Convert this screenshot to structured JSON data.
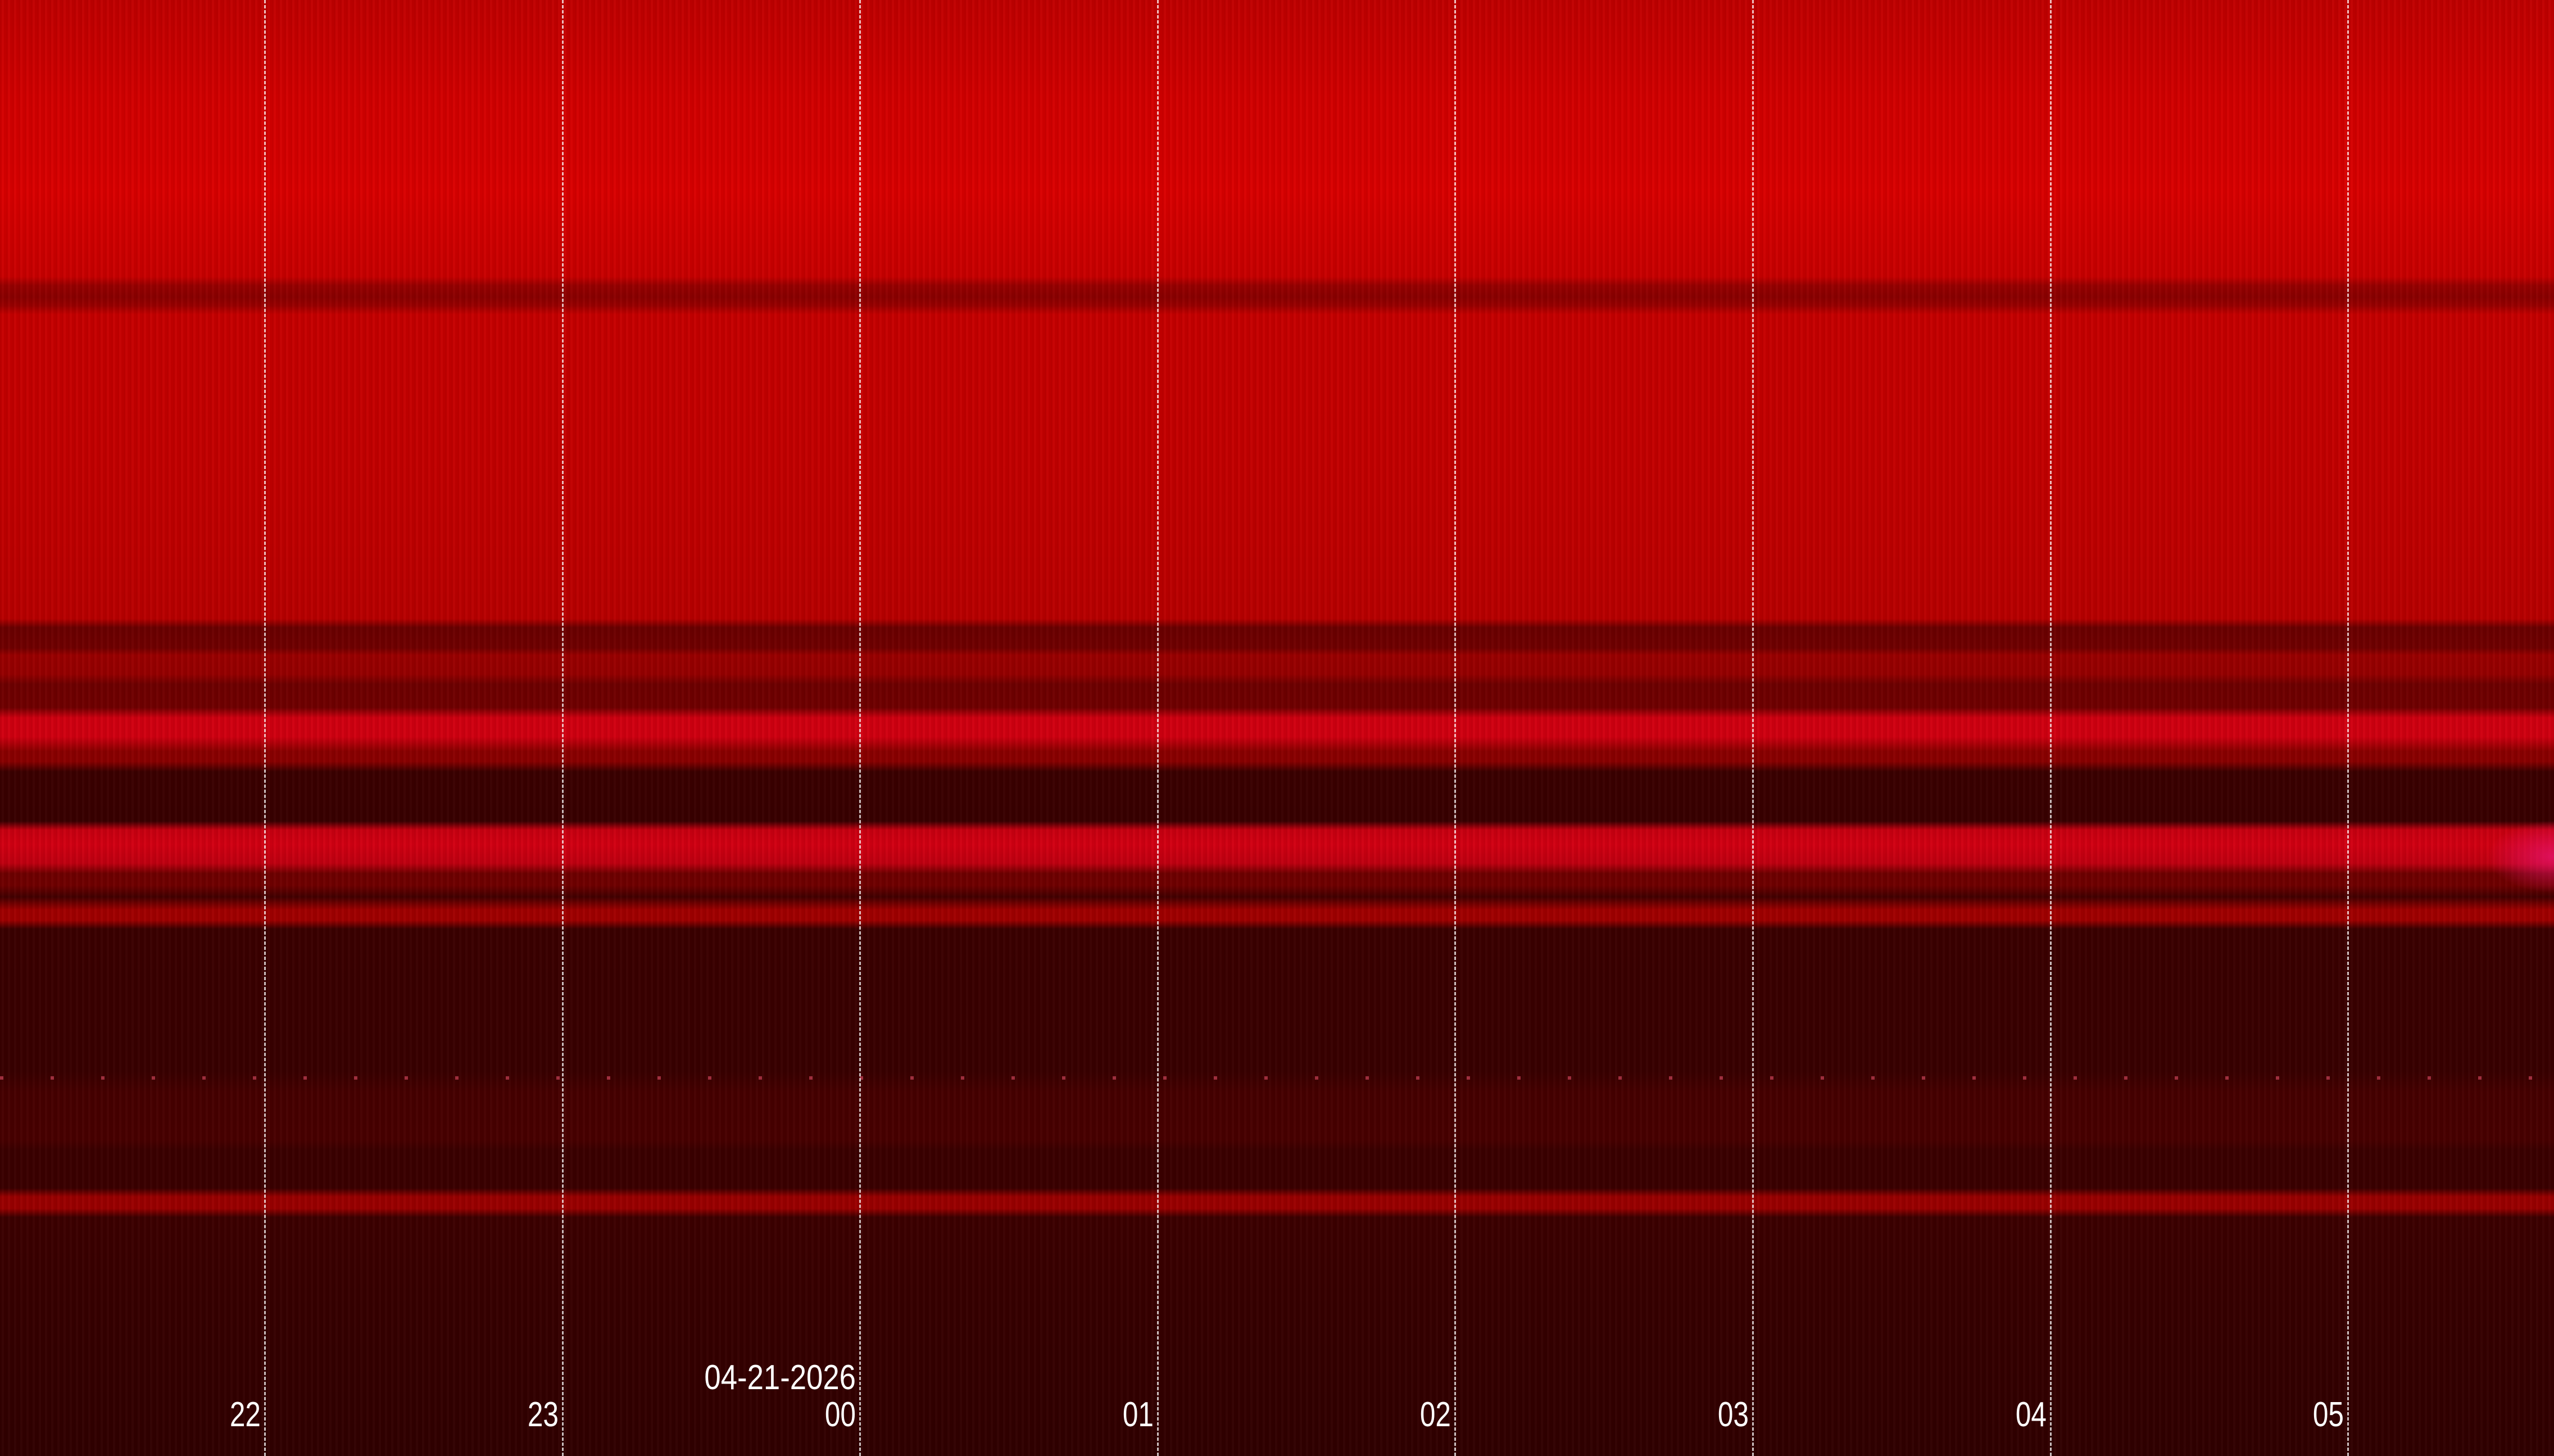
{
  "chart_data": {
    "type": "heatmap",
    "title": "",
    "xlabel": "",
    "ylabel": "",
    "x_tick_labels": [
      "22",
      "23",
      "00",
      "01",
      "02",
      "03",
      "04",
      "05"
    ],
    "date_label": "04-21-2026",
    "date_label_at_tick": "00",
    "grid": true,
    "grid_style": "dashed vertical",
    "colormap": [
      "#300000",
      "#700000",
      "#c00000",
      "#da0000",
      "#e0146e"
    ]
  }
}
